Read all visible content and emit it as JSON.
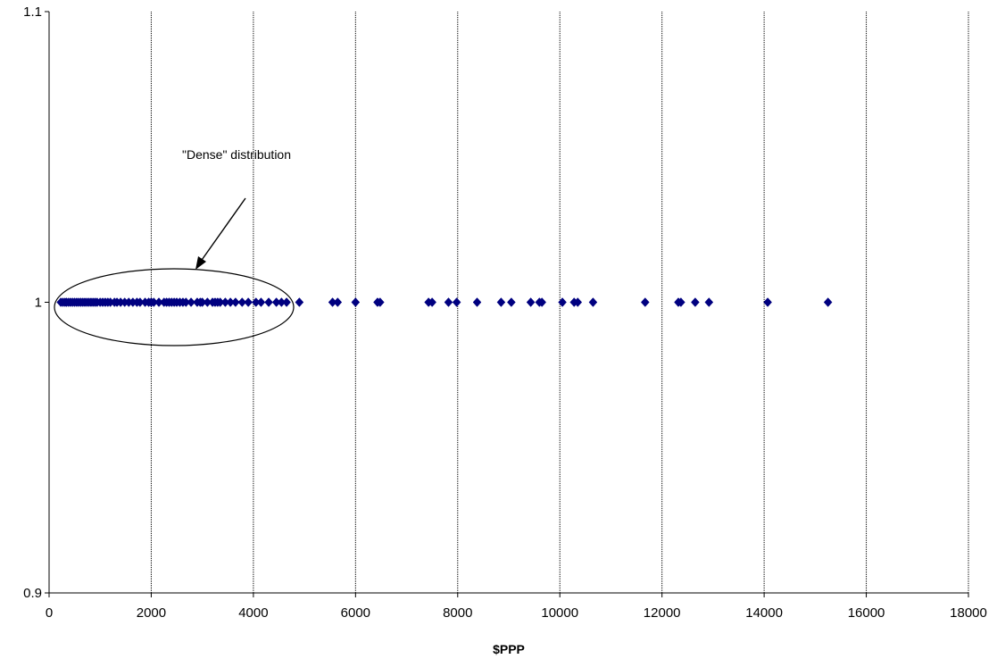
{
  "chart_data": {
    "type": "scatter",
    "title": "",
    "xlabel": "$PPP",
    "ylabel": "",
    "xlim": [
      0,
      18000
    ],
    "ylim": [
      0.9,
      1.1
    ],
    "x_ticks": [
      "0",
      "2000",
      "4000",
      "6000",
      "8000",
      "10000",
      "12000",
      "14000",
      "16000",
      "18000"
    ],
    "y_ticks": [
      "0.9",
      "1",
      "1.1"
    ],
    "grid": "vertical dashed lines at each x tick",
    "marker": "diamond",
    "colors": {
      "marker": "#000080",
      "axis": "#000000",
      "grid": "#000000"
    },
    "annotation": {
      "text": "\"Dense\" distribution",
      "shape": "ellipse enclosing points from about 0 to 4700 with arrow pointing to it"
    },
    "series": [
      {
        "x": [
          230,
          270,
          310,
          340,
          380,
          420,
          460,
          500,
          540,
          580,
          620,
          660,
          700,
          740,
          780,
          820,
          860,
          900,
          940,
          1000,
          1050,
          1100,
          1150,
          1200,
          1280,
          1330,
          1400,
          1480,
          1560,
          1640,
          1720,
          1780,
          1880,
          1950,
          2000,
          2050,
          2150,
          2250,
          2300,
          2350,
          2400,
          2450,
          2500,
          2560,
          2620,
          2680,
          2780,
          2900,
          2960,
          3000,
          3100,
          3200,
          3250,
          3300,
          3350,
          3450,
          3550,
          3650,
          3780,
          3900,
          4050,
          4150,
          4300,
          4450,
          4550,
          4650,
          4900,
          5550,
          5650,
          6000,
          6430,
          6480,
          7430,
          7500,
          7820,
          7980,
          8380,
          8850,
          9050,
          9430,
          9600,
          9650,
          10050,
          10280,
          10350,
          10650,
          11670,
          12320,
          12370,
          12650,
          12920,
          14070,
          15250
        ],
        "y_value": 1
      }
    ]
  }
}
